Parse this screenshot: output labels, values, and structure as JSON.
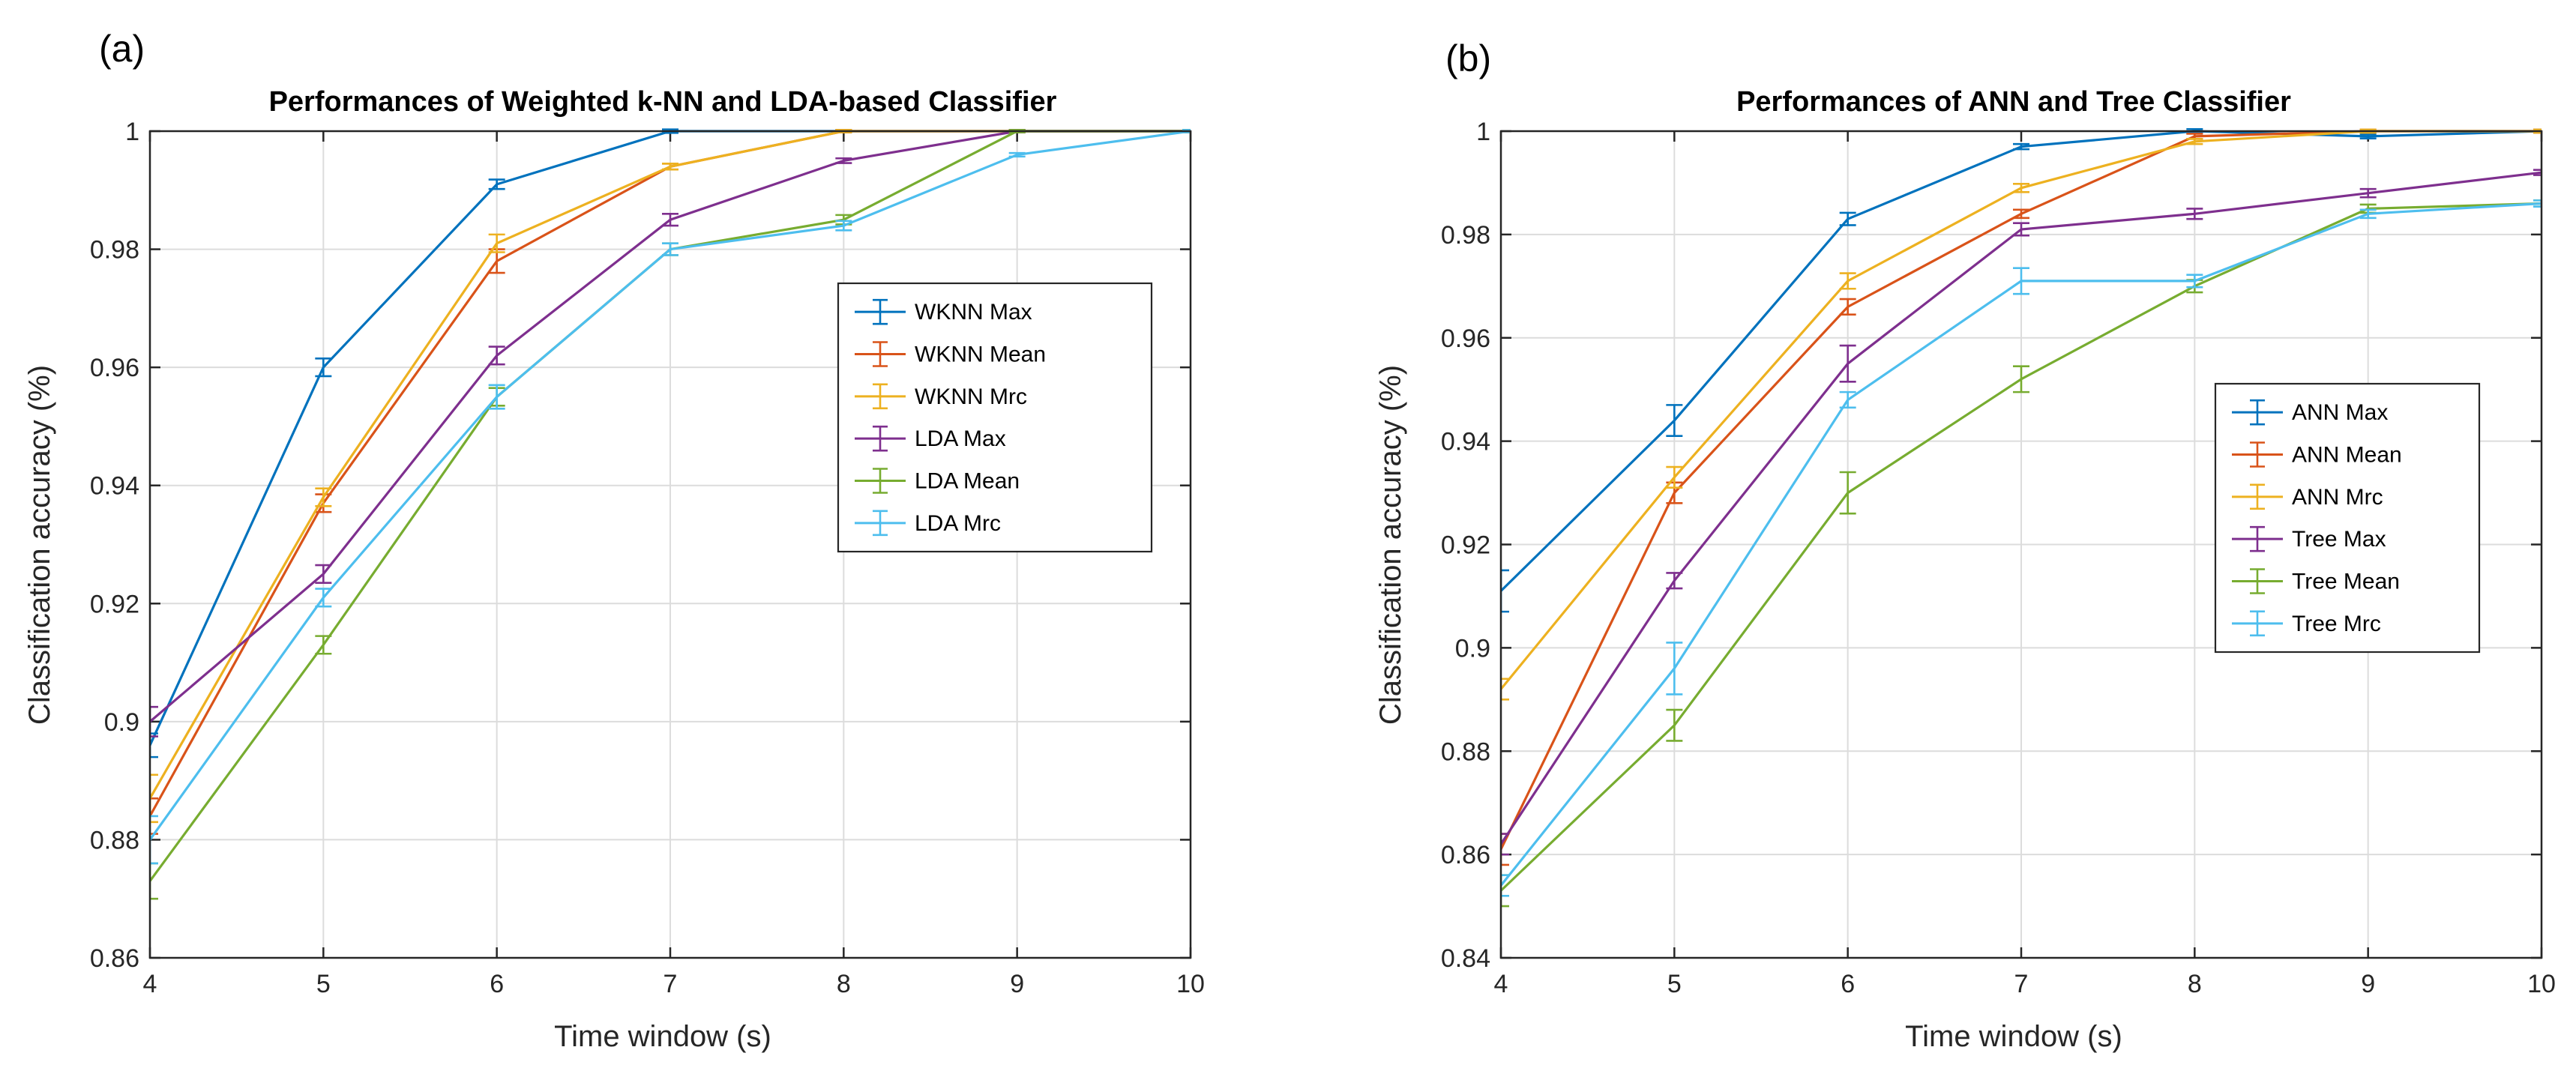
{
  "chart_data": [
    {
      "type": "line",
      "panel_label": "(a)",
      "title": "Performances of Weighted k-NN and LDA-based Classifier",
      "xlabel": "Time window (s)",
      "ylabel": "Classification accuracy (%)",
      "x": [
        4,
        5,
        6,
        7,
        8,
        9,
        10
      ],
      "xlim": [
        4,
        10
      ],
      "ylim": [
        0.86,
        1.0
      ],
      "xticks": [
        "4",
        "5",
        "6",
        "7",
        "8",
        "9",
        "10"
      ],
      "yticks": [
        "0.86",
        "0.88",
        "0.9",
        "0.92",
        "0.94",
        "0.96",
        "0.98",
        "1"
      ],
      "grid": true,
      "legend_position": "center-right",
      "series": [
        {
          "name": "WKNN Max",
          "color": "#0072BD",
          "values": [
            0.896,
            0.96,
            0.991,
            1.0,
            1.0,
            1.0,
            1.0
          ],
          "errors": [
            0.002,
            0.0015,
            0.0008,
            0.0003,
            0.0002,
            0.0002,
            0.0002
          ]
        },
        {
          "name": "WKNN Mean",
          "color": "#D95319",
          "values": [
            0.884,
            0.937,
            0.978,
            0.994,
            1.0,
            1.0,
            1.0
          ],
          "errors": [
            0.003,
            0.0015,
            0.002,
            0.0005,
            0.0002,
            0.0002,
            0.0002
          ]
        },
        {
          "name": "WKNN Mrc",
          "color": "#EDB120",
          "values": [
            0.887,
            0.938,
            0.981,
            0.994,
            1.0,
            1.0,
            1.0
          ],
          "errors": [
            0.004,
            0.0015,
            0.0015,
            0.0005,
            0.0002,
            0.0002,
            0.0002
          ]
        },
        {
          "name": "LDA Max",
          "color": "#7E2F8E",
          "values": [
            0.9,
            0.925,
            0.962,
            0.985,
            0.995,
            1.0,
            1.0
          ],
          "errors": [
            0.0025,
            0.0015,
            0.0015,
            0.001,
            0.0004,
            0.0002,
            0.0002
          ]
        },
        {
          "name": "LDA Mean",
          "color": "#77AC30",
          "values": [
            0.873,
            0.913,
            0.955,
            0.98,
            0.985,
            1.0,
            1.0
          ],
          "errors": [
            0.003,
            0.0015,
            0.0015,
            0.001,
            0.0008,
            0.0002,
            0.0002
          ]
        },
        {
          "name": "LDA Mrc",
          "color": "#4DBEEE",
          "values": [
            0.88,
            0.921,
            0.955,
            0.98,
            0.984,
            0.996,
            1.0
          ],
          "errors": [
            0.004,
            0.0015,
            0.002,
            0.001,
            0.0008,
            0.0003,
            0.0002
          ]
        }
      ]
    },
    {
      "type": "line",
      "panel_label": "(b)",
      "title": "Performances of ANN and Tree Classifier",
      "xlabel": "Time window (s)",
      "ylabel": "Classification accuracy (%)",
      "x": [
        4,
        5,
        6,
        7,
        8,
        9,
        10
      ],
      "xlim": [
        4,
        10
      ],
      "ylim": [
        0.84,
        1.0
      ],
      "xticks": [
        "4",
        "5",
        "6",
        "7",
        "8",
        "9",
        "10"
      ],
      "yticks": [
        "0.84",
        "0.86",
        "0.88",
        "0.9",
        "0.92",
        "0.94",
        "0.96",
        "0.98",
        "1"
      ],
      "grid": true,
      "legend_position": "center-right",
      "series": [
        {
          "name": "ANN Max",
          "color": "#0072BD",
          "values": [
            0.911,
            0.944,
            0.983,
            0.997,
            1.0,
            0.999,
            1.0
          ],
          "errors": [
            0.004,
            0.003,
            0.0012,
            0.0005,
            0.0004,
            0.0004,
            0.0003
          ]
        },
        {
          "name": "ANN Mean",
          "color": "#D95319",
          "values": [
            0.861,
            0.93,
            0.966,
            0.984,
            0.999,
            1.0,
            1.0
          ],
          "errors": [
            0.003,
            0.002,
            0.0015,
            0.0008,
            0.0005,
            0.0003,
            0.0003
          ]
        },
        {
          "name": "ANN Mrc",
          "color": "#EDB120",
          "values": [
            0.892,
            0.933,
            0.971,
            0.989,
            0.998,
            1.0,
            1.0
          ],
          "errors": [
            0.002,
            0.002,
            0.0015,
            0.0008,
            0.0005,
            0.0003,
            0.0003
          ]
        },
        {
          "name": "Tree Max",
          "color": "#7E2F8E",
          "values": [
            0.862,
            0.913,
            0.955,
            0.981,
            0.984,
            0.988,
            0.992
          ],
          "errors": [
            0.002,
            0.0015,
            0.0035,
            0.0012,
            0.001,
            0.0008,
            0.0005
          ]
        },
        {
          "name": "Tree Mean",
          "color": "#77AC30",
          "values": [
            0.853,
            0.885,
            0.93,
            0.952,
            0.97,
            0.985,
            0.986
          ],
          "errors": [
            0.003,
            0.003,
            0.004,
            0.0025,
            0.0012,
            0.0008,
            0.0006
          ]
        },
        {
          "name": "Tree Mrc",
          "color": "#4DBEEE",
          "values": [
            0.854,
            0.896,
            0.948,
            0.971,
            0.971,
            0.984,
            0.986
          ],
          "errors": [
            0.002,
            0.005,
            0.0015,
            0.0025,
            0.0012,
            0.0008,
            0.0006
          ]
        }
      ]
    }
  ]
}
